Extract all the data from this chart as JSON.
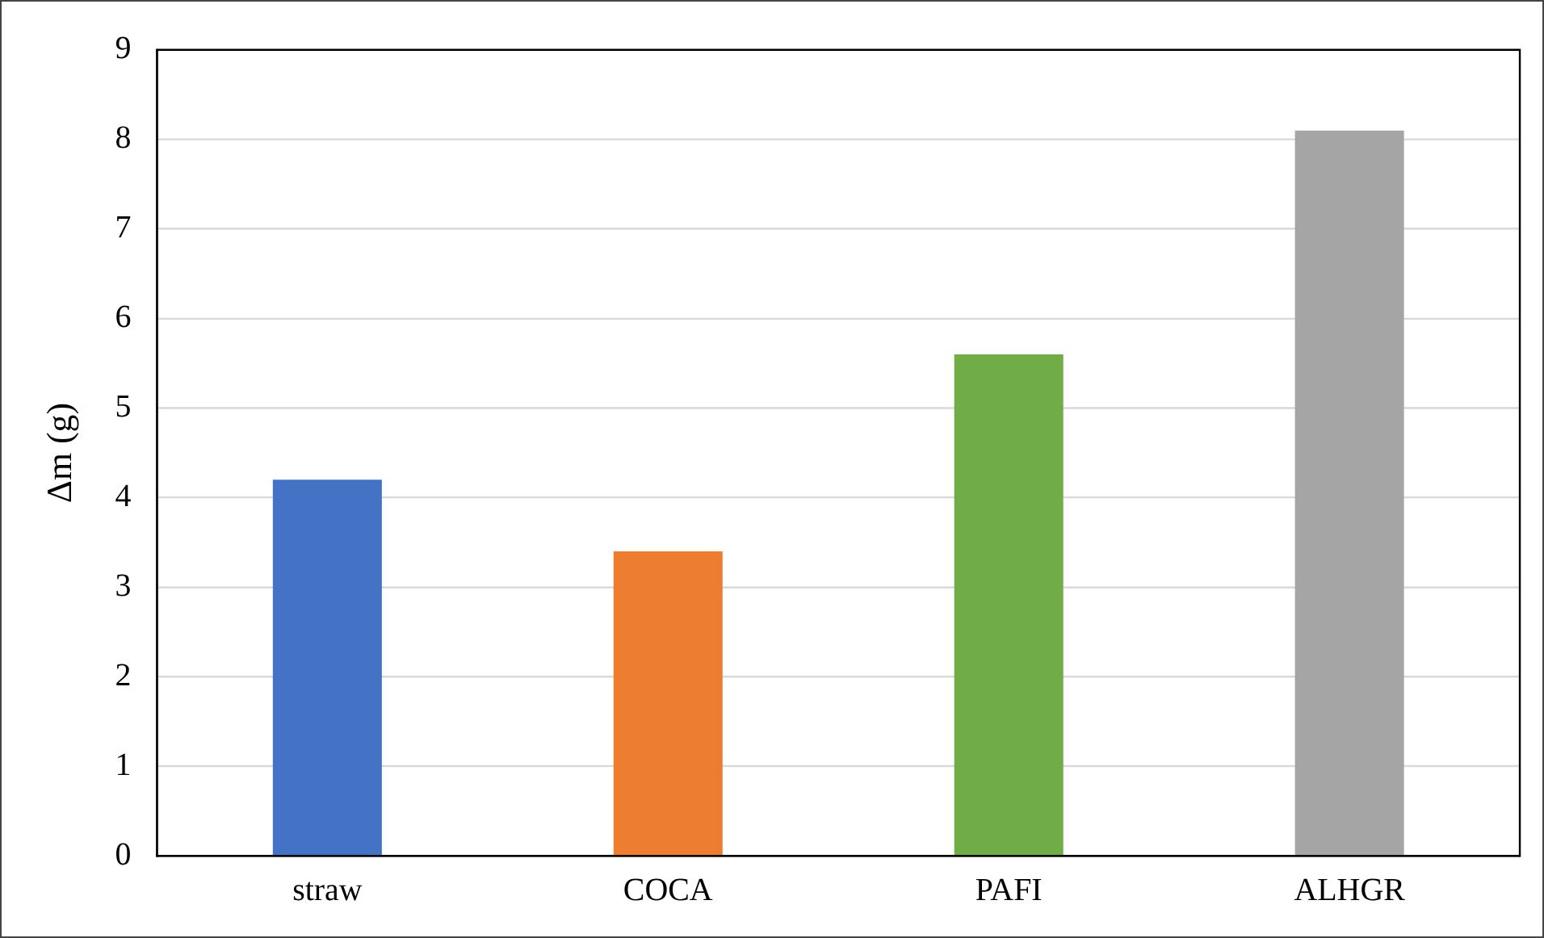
{
  "chart_data": {
    "type": "bar",
    "ylabel": "Δm (g)",
    "categories": [
      "straw",
      "COCA",
      "PAFI",
      "ALHGR"
    ],
    "values": [
      4.2,
      3.4,
      5.6,
      8.1
    ],
    "colors": [
      "#4472c4",
      "#ed7d31",
      "#70ad47",
      "#a5a5a5"
    ],
    "ylim": [
      0,
      9
    ],
    "yticks": [
      0,
      1,
      2,
      3,
      4,
      5,
      6,
      7,
      8,
      9
    ],
    "grid": "y",
    "legend": false
  }
}
